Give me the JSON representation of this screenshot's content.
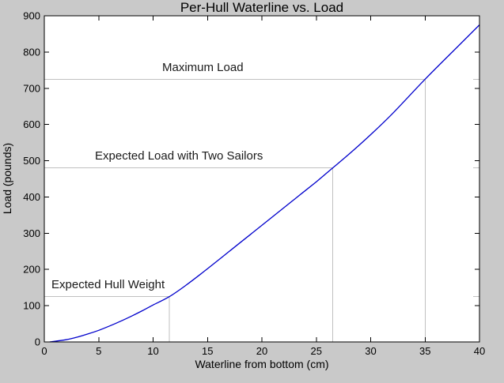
{
  "figure": {
    "background": "#c9c9c9",
    "plot_background": "#ffffff",
    "axis_color": "#000000"
  },
  "chart_data": {
    "type": "line",
    "title": "Per-Hull Waterline vs. Load",
    "xlabel": "Waterline from bottom (cm)",
    "ylabel": "Load (pounds)",
    "xlim": [
      0,
      40
    ],
    "ylim": [
      0,
      900
    ],
    "x_ticks": [
      0,
      5,
      10,
      15,
      20,
      25,
      30,
      35,
      40
    ],
    "y_ticks": [
      0,
      100,
      200,
      300,
      400,
      500,
      600,
      700,
      800,
      900
    ],
    "grid": false,
    "legend": "none",
    "series": [
      {
        "name": "load-vs-waterline-curve",
        "color": "#0000cc",
        "points": [
          [
            0.5,
            0
          ],
          [
            2,
            6
          ],
          [
            3,
            13
          ],
          [
            4,
            22
          ],
          [
            5,
            32
          ],
          [
            6,
            44
          ],
          [
            7,
            57
          ],
          [
            8,
            71
          ],
          [
            9,
            86
          ],
          [
            10,
            102
          ],
          [
            11.5,
            125
          ],
          [
            13,
            156
          ],
          [
            15,
            202
          ],
          [
            17,
            250
          ],
          [
            19,
            298
          ],
          [
            21,
            346
          ],
          [
            23,
            394
          ],
          [
            25,
            442
          ],
          [
            26.5,
            480
          ],
          [
            28,
            518
          ],
          [
            30,
            572
          ],
          [
            32,
            630
          ],
          [
            35,
            725
          ],
          [
            38,
            815
          ],
          [
            40,
            875
          ]
        ]
      }
    ],
    "reference_lines": [
      {
        "label": "Maximum Load",
        "load_pounds": 725,
        "waterline_cm": 35,
        "color": "#c0c0c0"
      },
      {
        "label": "Expected Load with Two Sailors",
        "load_pounds": 480,
        "waterline_cm": 26.5,
        "color": "#c0c0c0"
      },
      {
        "label": "Expected Hull Weight",
        "load_pounds": 125,
        "waterline_cm": 11.5,
        "color": "#c0c0c0"
      }
    ]
  }
}
